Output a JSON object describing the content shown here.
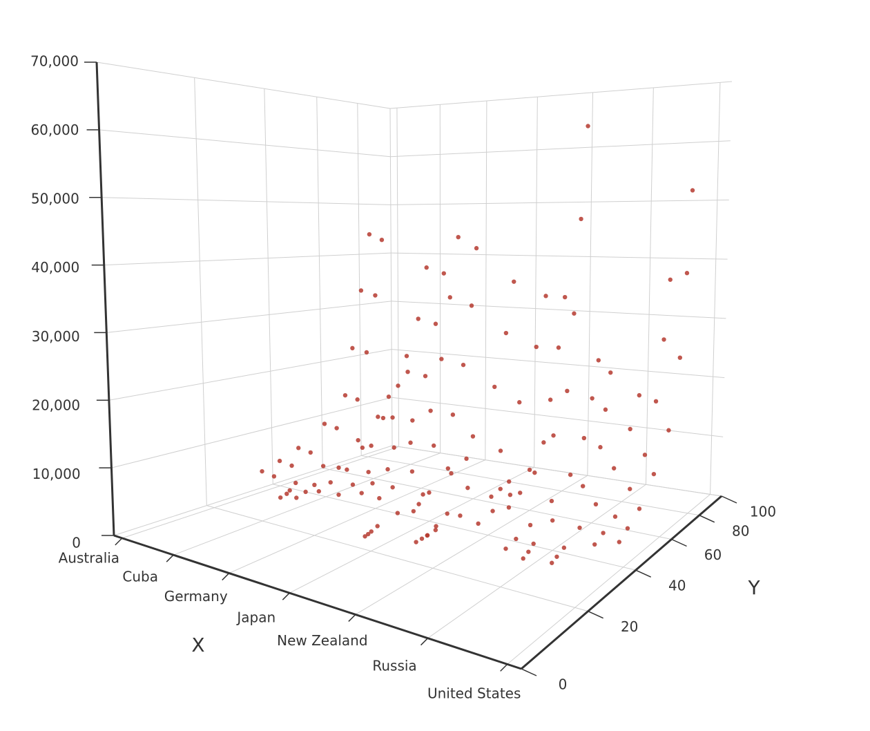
{
  "chart_data": {
    "type": "scatter3d",
    "categories": [
      "Australia",
      null,
      null,
      "Cuba",
      null,
      null,
      "Germany",
      null,
      null,
      "Japan",
      null,
      null,
      "New Zealand",
      null,
      null,
      "Russia",
      null,
      null,
      "United States"
    ],
    "x_label": "X",
    "y_label": "Y",
    "ylim": [
      0,
      100
    ],
    "yticks": [
      0,
      20,
      40,
      60,
      80,
      100
    ],
    "zlim": [
      0,
      70000
    ],
    "zticks": [
      0,
      {
        "value": 10000,
        "label": "10,000"
      },
      {
        "value": 20000,
        "label": "20,000"
      },
      {
        "value": 30000,
        "label": "30,000"
      },
      {
        "value": 40000,
        "label": "40,000"
      },
      {
        "value": 50000,
        "label": "50,000"
      },
      {
        "value": 60000,
        "label": "60,000"
      },
      {
        "value": 70000,
        "label": "70,000"
      }
    ],
    "grid": true,
    "series": [
      {
        "color": "#b5392f",
        "x": [
          0,
          0,
          0,
          0,
          0,
          0,
          0,
          0,
          1,
          1,
          1,
          1,
          1,
          1,
          1,
          1,
          2,
          2,
          2,
          2,
          2,
          2,
          2,
          2,
          3,
          3,
          3,
          3,
          3,
          3,
          3,
          3,
          4,
          4,
          4,
          4,
          4,
          4,
          4,
          4,
          5,
          5,
          5,
          5,
          5,
          5,
          5,
          5,
          6,
          6,
          6,
          6,
          6,
          6,
          6,
          6,
          7,
          7,
          7,
          7,
          7,
          7,
          7,
          7,
          8,
          8,
          8,
          8,
          8,
          8,
          8,
          8,
          9,
          9,
          9,
          9,
          9,
          9,
          9,
          9,
          10,
          10,
          10,
          10,
          10,
          10,
          10,
          10,
          11,
          11,
          11,
          11,
          11,
          11,
          11,
          11,
          12,
          12,
          12,
          12,
          12,
          12,
          12,
          12,
          13,
          13,
          13,
          13,
          13,
          13,
          13,
          13,
          14,
          14,
          14,
          14,
          14,
          14,
          14,
          14,
          15,
          15,
          15,
          15,
          15,
          15,
          15,
          15,
          16,
          16,
          16,
          16,
          16,
          16,
          16,
          16,
          17,
          17,
          17,
          17,
          17,
          17,
          17,
          17,
          18,
          18,
          18,
          18,
          18,
          18,
          18,
          18
        ],
        "y": [
          34,
          40,
          47,
          58,
          68,
          72,
          77,
          82,
          33,
          39,
          46,
          57,
          67,
          72,
          77,
          81,
          30,
          32,
          33,
          35,
          45,
          60,
          70,
          76,
          30,
          33,
          36,
          45,
          55,
          65,
          73,
          78,
          32,
          36,
          42,
          52,
          62,
          70,
          76,
          81,
          33,
          38,
          44,
          55,
          64,
          71,
          77,
          82,
          35,
          39,
          45,
          55,
          65,
          71,
          76,
          81,
          35,
          40,
          48,
          58,
          68,
          74,
          79,
          82,
          24,
          25,
          26,
          28,
          35,
          45,
          58,
          66,
          34,
          36,
          40,
          48,
          60,
          72,
          79,
          84,
          28,
          30,
          32,
          35,
          45,
          60,
          65,
          70,
          25,
          28,
          32,
          40,
          55,
          65,
          75,
          81,
          36,
          42,
          50,
          60,
          68,
          72,
          77,
          81,
          40,
          45,
          52,
          62,
          70,
          74,
          78,
          82,
          30,
          34,
          40,
          50,
          60,
          68,
          73,
          77,
          28,
          30,
          32,
          40,
          55,
          65,
          68,
          71,
          30,
          32,
          35,
          42,
          50,
          60,
          70,
          76,
          38,
          42,
          48,
          56,
          65,
          72,
          77,
          81,
          38,
          42,
          48,
          56,
          65,
          72,
          76,
          79
        ],
        "values": [
          3520,
          4400,
          5720,
          8800,
          13200,
          22000,
          33000,
          44000,
          3440,
          4300,
          5590,
          8600,
          12900,
          21500,
          32250,
          43000,
          1040,
          1300,
          1690,
          2600,
          3900,
          6500,
          9750,
          13000,
          1680,
          2100,
          2730,
          4200,
          6300,
          10500,
          15750,
          21000,
          3040,
          3800,
          4940,
          7600,
          11400,
          19000,
          28500,
          38000,
          2960,
          3700,
          4810,
          7400,
          11100,
          18500,
          27750,
          37000,
          3520,
          4400,
          5720,
          8800,
          13200,
          22000,
          33000,
          44000,
          3360,
          4200,
          5460,
          8400,
          12600,
          21000,
          31500,
          42000,
          440,
          550,
          715,
          1100,
          1650,
          2750,
          4125,
          5500,
          2880,
          3600,
          4680,
          7200,
          10800,
          18000,
          27000,
          36000,
          160,
          200,
          260,
          400,
          600,
          1000,
          1500,
          2000,
          2720,
          3400,
          4420,
          6800,
          10200,
          17000,
          25500,
          34000,
          2720,
          3400,
          4420,
          6800,
          10200,
          17000,
          25500,
          34000,
          5120,
          6400,
          8320,
          12800,
          19200,
          32000,
          48000,
          64000,
          1920,
          2400,
          3120,
          4800,
          7200,
          12000,
          18000,
          24000,
          1840,
          2300,
          2990,
          4600,
          6900,
          11500,
          17250,
          23000,
          1520,
          1900,
          2470,
          3800,
          5700,
          9500,
          14250,
          19000,
          3040,
          3800,
          4940,
          7600,
          11400,
          19000,
          28500,
          38000,
          4240,
          5300,
          6890,
          10600,
          15900,
          26500,
          39750,
          53000
        ]
      }
    ]
  }
}
